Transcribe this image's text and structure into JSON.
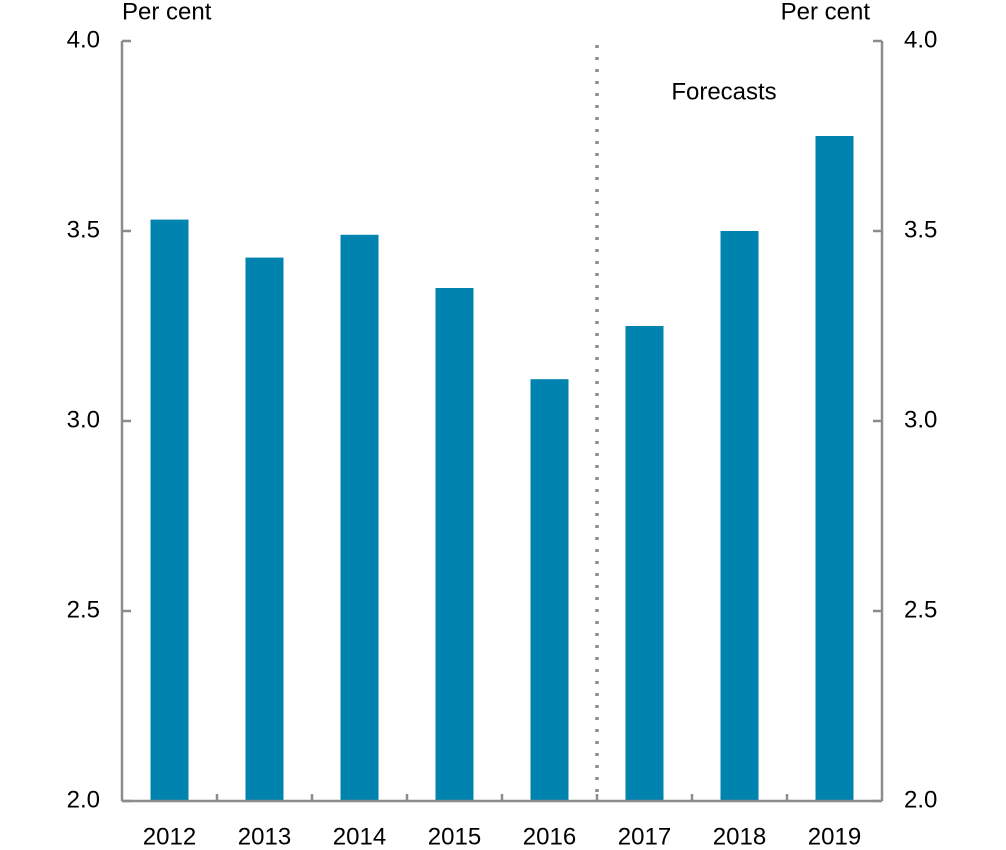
{
  "chart_data": {
    "type": "bar",
    "y_label": "Per cent",
    "y2_label": "Per cent",
    "annotation": "Forecasts",
    "categories": [
      "2012",
      "2013",
      "2014",
      "2015",
      "2016",
      "2017",
      "2018",
      "2019"
    ],
    "values": [
      3.53,
      3.43,
      3.49,
      3.35,
      3.11,
      3.25,
      3.5,
      3.75
    ],
    "color": "#0083ae",
    "ylim": [
      2.0,
      4.0
    ],
    "yticks": [
      {
        "value": 2.0,
        "label": "2.0"
      },
      {
        "value": 2.5,
        "label": "2.5"
      },
      {
        "value": 3.0,
        "label": "3.0"
      },
      {
        "value": 3.5,
        "label": "3.5"
      },
      {
        "value": 4.0,
        "label": "4.0"
      }
    ],
    "y2lim": [
      2.0,
      4.0
    ],
    "y2ticks": [
      {
        "value": 2.0,
        "label": "2.0"
      },
      {
        "value": 2.5,
        "label": "2.5"
      },
      {
        "value": 3.0,
        "label": "3.0"
      },
      {
        "value": 3.5,
        "label": "3.5"
      },
      {
        "value": 4.0,
        "label": "4.0"
      }
    ],
    "grid": false
  }
}
